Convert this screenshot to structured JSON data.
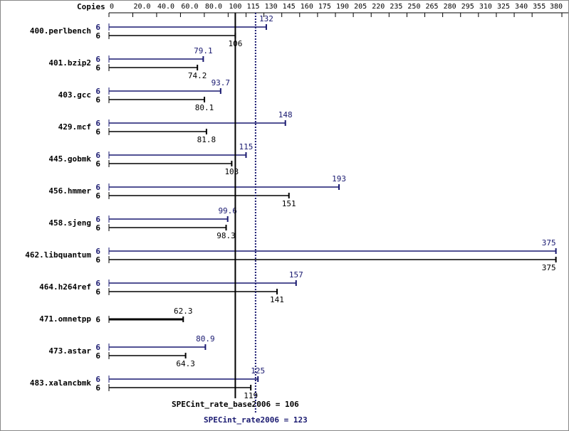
{
  "chart_data": {
    "type": "bar",
    "orientation": "horizontal",
    "xlabel": "Copies",
    "categories": [
      "400.perlbench",
      "401.bzip2",
      "403.gcc",
      "429.mcf",
      "445.gobmk",
      "456.hmmer",
      "458.sjeng",
      "462.libquantum",
      "464.h264ref",
      "471.omnetpp",
      "473.astar",
      "483.xalancbmk"
    ],
    "series": [
      {
        "color": "#191970",
        "copies": [
          6,
          6,
          6,
          6,
          6,
          6,
          6,
          6,
          6,
          null,
          6,
          6
        ],
        "values": [
          132,
          79.1,
          93.7,
          148,
          115,
          193,
          99.6,
          375,
          157,
          null,
          80.9,
          125
        ]
      },
      {
        "color": "#000000",
        "copies": [
          6,
          6,
          6,
          6,
          6,
          6,
          6,
          6,
          6,
          6,
          6,
          6
        ],
        "values": [
          106,
          74.2,
          80.1,
          81.8,
          103,
          151,
          98.3,
          375,
          141,
          62.3,
          64.3,
          119
        ]
      }
    ],
    "xlim": [
      0,
      380
    ],
    "xticks": [
      0,
      {
        "value": 20,
        "label": "20.0"
      },
      {
        "value": 40,
        "label": "40.0"
      },
      {
        "value": 60,
        "label": "60.0"
      },
      {
        "value": 80,
        "label": "80.0"
      },
      100,
      115,
      130,
      145,
      160,
      175,
      190,
      205,
      220,
      235,
      250,
      265,
      280,
      295,
      310,
      325,
      340,
      355,
      380
    ],
    "reference_lines": [
      {
        "value": 106,
        "label": "SPECint_rate_base2006 = 106",
        "color": "#000000",
        "style": "solid"
      },
      {
        "value": 123,
        "label": "SPECint_rate2006 = 123",
        "color": "#191970",
        "style": "dotted"
      }
    ]
  }
}
